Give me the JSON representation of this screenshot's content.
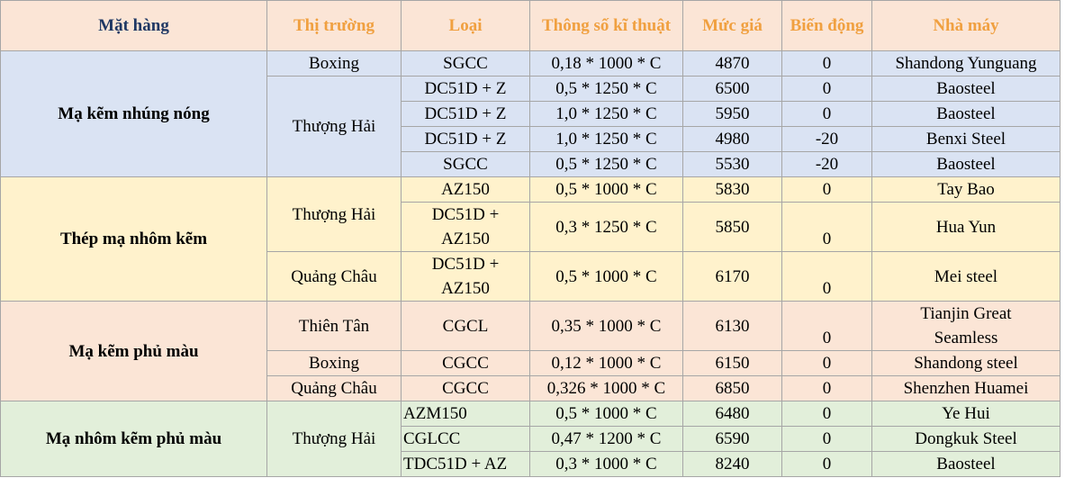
{
  "table": {
    "header": [
      "Mặt hàng",
      "Thị trường",
      "Loại",
      "Thông số kĩ thuật",
      "Mức giá",
      "Biến động",
      "Nhà máy"
    ],
    "groups": [
      {
        "name": "Mạ kẽm nhúng nóng",
        "markets": [
          {
            "name": "Boxing",
            "rows": [
              {
                "type": "SGCC",
                "spec": "0,18 * 1000 * C",
                "price": 4870,
                "change": 0,
                "factory": "Shandong Yunguang"
              }
            ]
          },
          {
            "name": "Thượng Hải",
            "rows": [
              {
                "type": "DC51D + Z",
                "spec": "0,5 * 1250 * C",
                "price": 6500,
                "change": 0,
                "factory": "Baosteel"
              },
              {
                "type": "DC51D + Z",
                "spec": "1,0 * 1250 * C",
                "price": 5950,
                "change": 0,
                "factory": "Baosteel"
              },
              {
                "type": "DC51D + Z",
                "spec": "1,0 * 1250 * C",
                "price": 4980,
                "change": -20,
                "factory": "Benxi Steel"
              },
              {
                "type": "SGCC",
                "spec": "0,5 * 1250 * C",
                "price": 5530,
                "change": -20,
                "factory": "Baosteel"
              }
            ]
          }
        ]
      },
      {
        "name": "Thép mạ nhôm kẽm",
        "markets": [
          {
            "name": "Thượng Hải",
            "rows": [
              {
                "type": "AZ150",
                "spec": "0,5 * 1000 * C",
                "price": 5830,
                "change": 0,
                "factory": "Tay Bao"
              },
              {
                "type": "DC51D + AZ150",
                "spec": "0,3 * 1250 * C",
                "price": 5850,
                "change": 0,
                "factory": "Hua Yun"
              }
            ]
          },
          {
            "name": "Quảng Châu",
            "rows": [
              {
                "type": "DC51D + AZ150",
                "spec": "0,5 * 1000 * C",
                "price": 6170,
                "change": 0,
                "factory": "Mei steel"
              }
            ]
          }
        ]
      },
      {
        "name": "Mạ kẽm phủ màu",
        "markets": [
          {
            "name": "Thiên Tân",
            "rows": [
              {
                "type": "CGCL",
                "spec": "0,35 * 1000 * C",
                "price": 6130,
                "change": 0,
                "factory": "Tianjin Great Seamless"
              }
            ]
          },
          {
            "name": "Boxing",
            "rows": [
              {
                "type": "CGCC",
                "spec": "0,12 * 1000 * C",
                "price": 6150,
                "change": 0,
                "factory": "Shandong steel"
              }
            ]
          },
          {
            "name": "Quảng Châu",
            "rows": [
              {
                "type": "CGCC",
                "spec": "0,326 * 1000 * C",
                "price": 6850,
                "change": 0,
                "factory": "Shenzhen Huamei"
              }
            ]
          }
        ]
      },
      {
        "name": "Mạ nhôm kẽm phủ màu",
        "markets": [
          {
            "name": "Thượng Hải",
            "rows": [
              {
                "type": "AZM150",
                "spec": "0,5 * 1000 * C",
                "price": 6480,
                "change": 0,
                "factory": "Ye Hui"
              },
              {
                "type": "CGLCC",
                "spec": "0,47 * 1200 * C",
                "price": 6590,
                "change": 0,
                "factory": "Dongkuk Steel"
              },
              {
                "type": "TDC51D + AZ",
                "spec": "0,3 * 1000 * C",
                "price": 8240,
                "change": 0,
                "factory": "Baosteel"
              }
            ]
          }
        ]
      }
    ]
  }
}
